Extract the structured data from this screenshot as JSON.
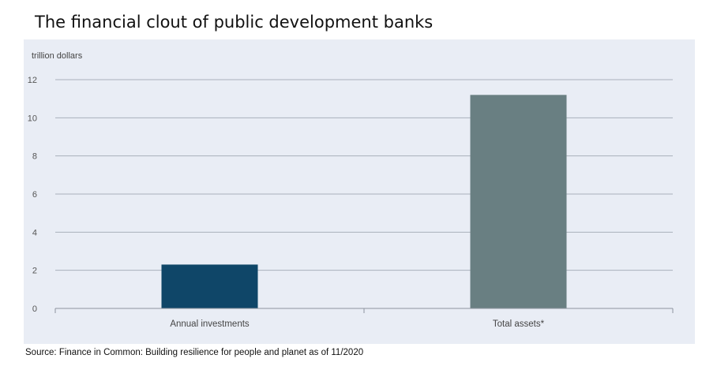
{
  "title": "The financial clout of public development banks",
  "source": "Source: Finance in Common: Building resilience for people and planet as of 11/2020",
  "colors": {
    "panel_background": "#e9edf5",
    "grid": "#a9b0bb",
    "bar_annual_investments": "#0f4668",
    "bar_total_assets": "#697f82"
  },
  "chart_data": {
    "type": "bar",
    "title": "The financial clout of public development banks",
    "ylabel": "trillion dollars",
    "xlabel": "",
    "categories": [
      "Annual investments",
      "Total assets*"
    ],
    "values": [
      2.3,
      11.2
    ],
    "ylim": [
      0,
      12
    ],
    "yticks": [
      0,
      2,
      4,
      6,
      8,
      10,
      12
    ],
    "grid": true,
    "legend": "none"
  }
}
